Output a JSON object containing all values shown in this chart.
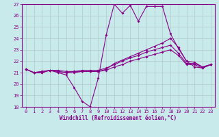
{
  "xlabel": "Windchill (Refroidissement éolien,°C)",
  "background_color": "#c8eaea",
  "grid_color": "#b0c8c8",
  "line_color": "#880088",
  "xlim": [
    -0.5,
    23.5
  ],
  "ylim": [
    18,
    27
  ],
  "xticks": [
    0,
    1,
    2,
    3,
    4,
    5,
    6,
    7,
    8,
    9,
    10,
    11,
    12,
    13,
    14,
    15,
    16,
    17,
    18,
    19,
    20,
    21,
    22,
    23
  ],
  "yticks": [
    18,
    19,
    20,
    21,
    22,
    23,
    24,
    25,
    26,
    27
  ],
  "x": [
    0,
    1,
    2,
    3,
    4,
    5,
    6,
    7,
    8,
    9,
    10,
    11,
    12,
    13,
    14,
    15,
    16,
    17,
    18,
    19,
    20,
    21,
    22,
    23
  ],
  "line1": [
    21.3,
    21.0,
    21.0,
    21.2,
    21.0,
    20.8,
    19.7,
    18.5,
    18.0,
    20.5,
    24.3,
    27.0,
    26.2,
    26.9,
    25.5,
    26.8,
    26.8,
    26.8,
    24.4,
    23.1,
    22.0,
    21.5,
    21.4,
    21.7
  ],
  "line2": [
    21.3,
    21.0,
    21.0,
    21.2,
    21.1,
    21.0,
    21.0,
    21.1,
    21.1,
    21.1,
    21.3,
    21.8,
    22.1,
    22.4,
    22.7,
    23.0,
    23.3,
    23.6,
    24.0,
    23.2,
    22.0,
    21.9,
    21.5,
    21.7
  ],
  "line3": [
    21.3,
    21.0,
    21.1,
    21.2,
    21.2,
    21.1,
    21.1,
    21.2,
    21.2,
    21.2,
    21.4,
    21.7,
    22.0,
    22.3,
    22.5,
    22.8,
    23.0,
    23.2,
    23.4,
    22.7,
    21.8,
    21.8,
    21.5,
    21.7
  ],
  "line4": [
    21.3,
    21.0,
    21.1,
    21.2,
    21.1,
    21.0,
    21.1,
    21.1,
    21.1,
    21.1,
    21.2,
    21.5,
    21.7,
    22.0,
    22.2,
    22.4,
    22.6,
    22.8,
    23.0,
    22.5,
    21.7,
    21.7,
    21.4,
    21.7
  ]
}
